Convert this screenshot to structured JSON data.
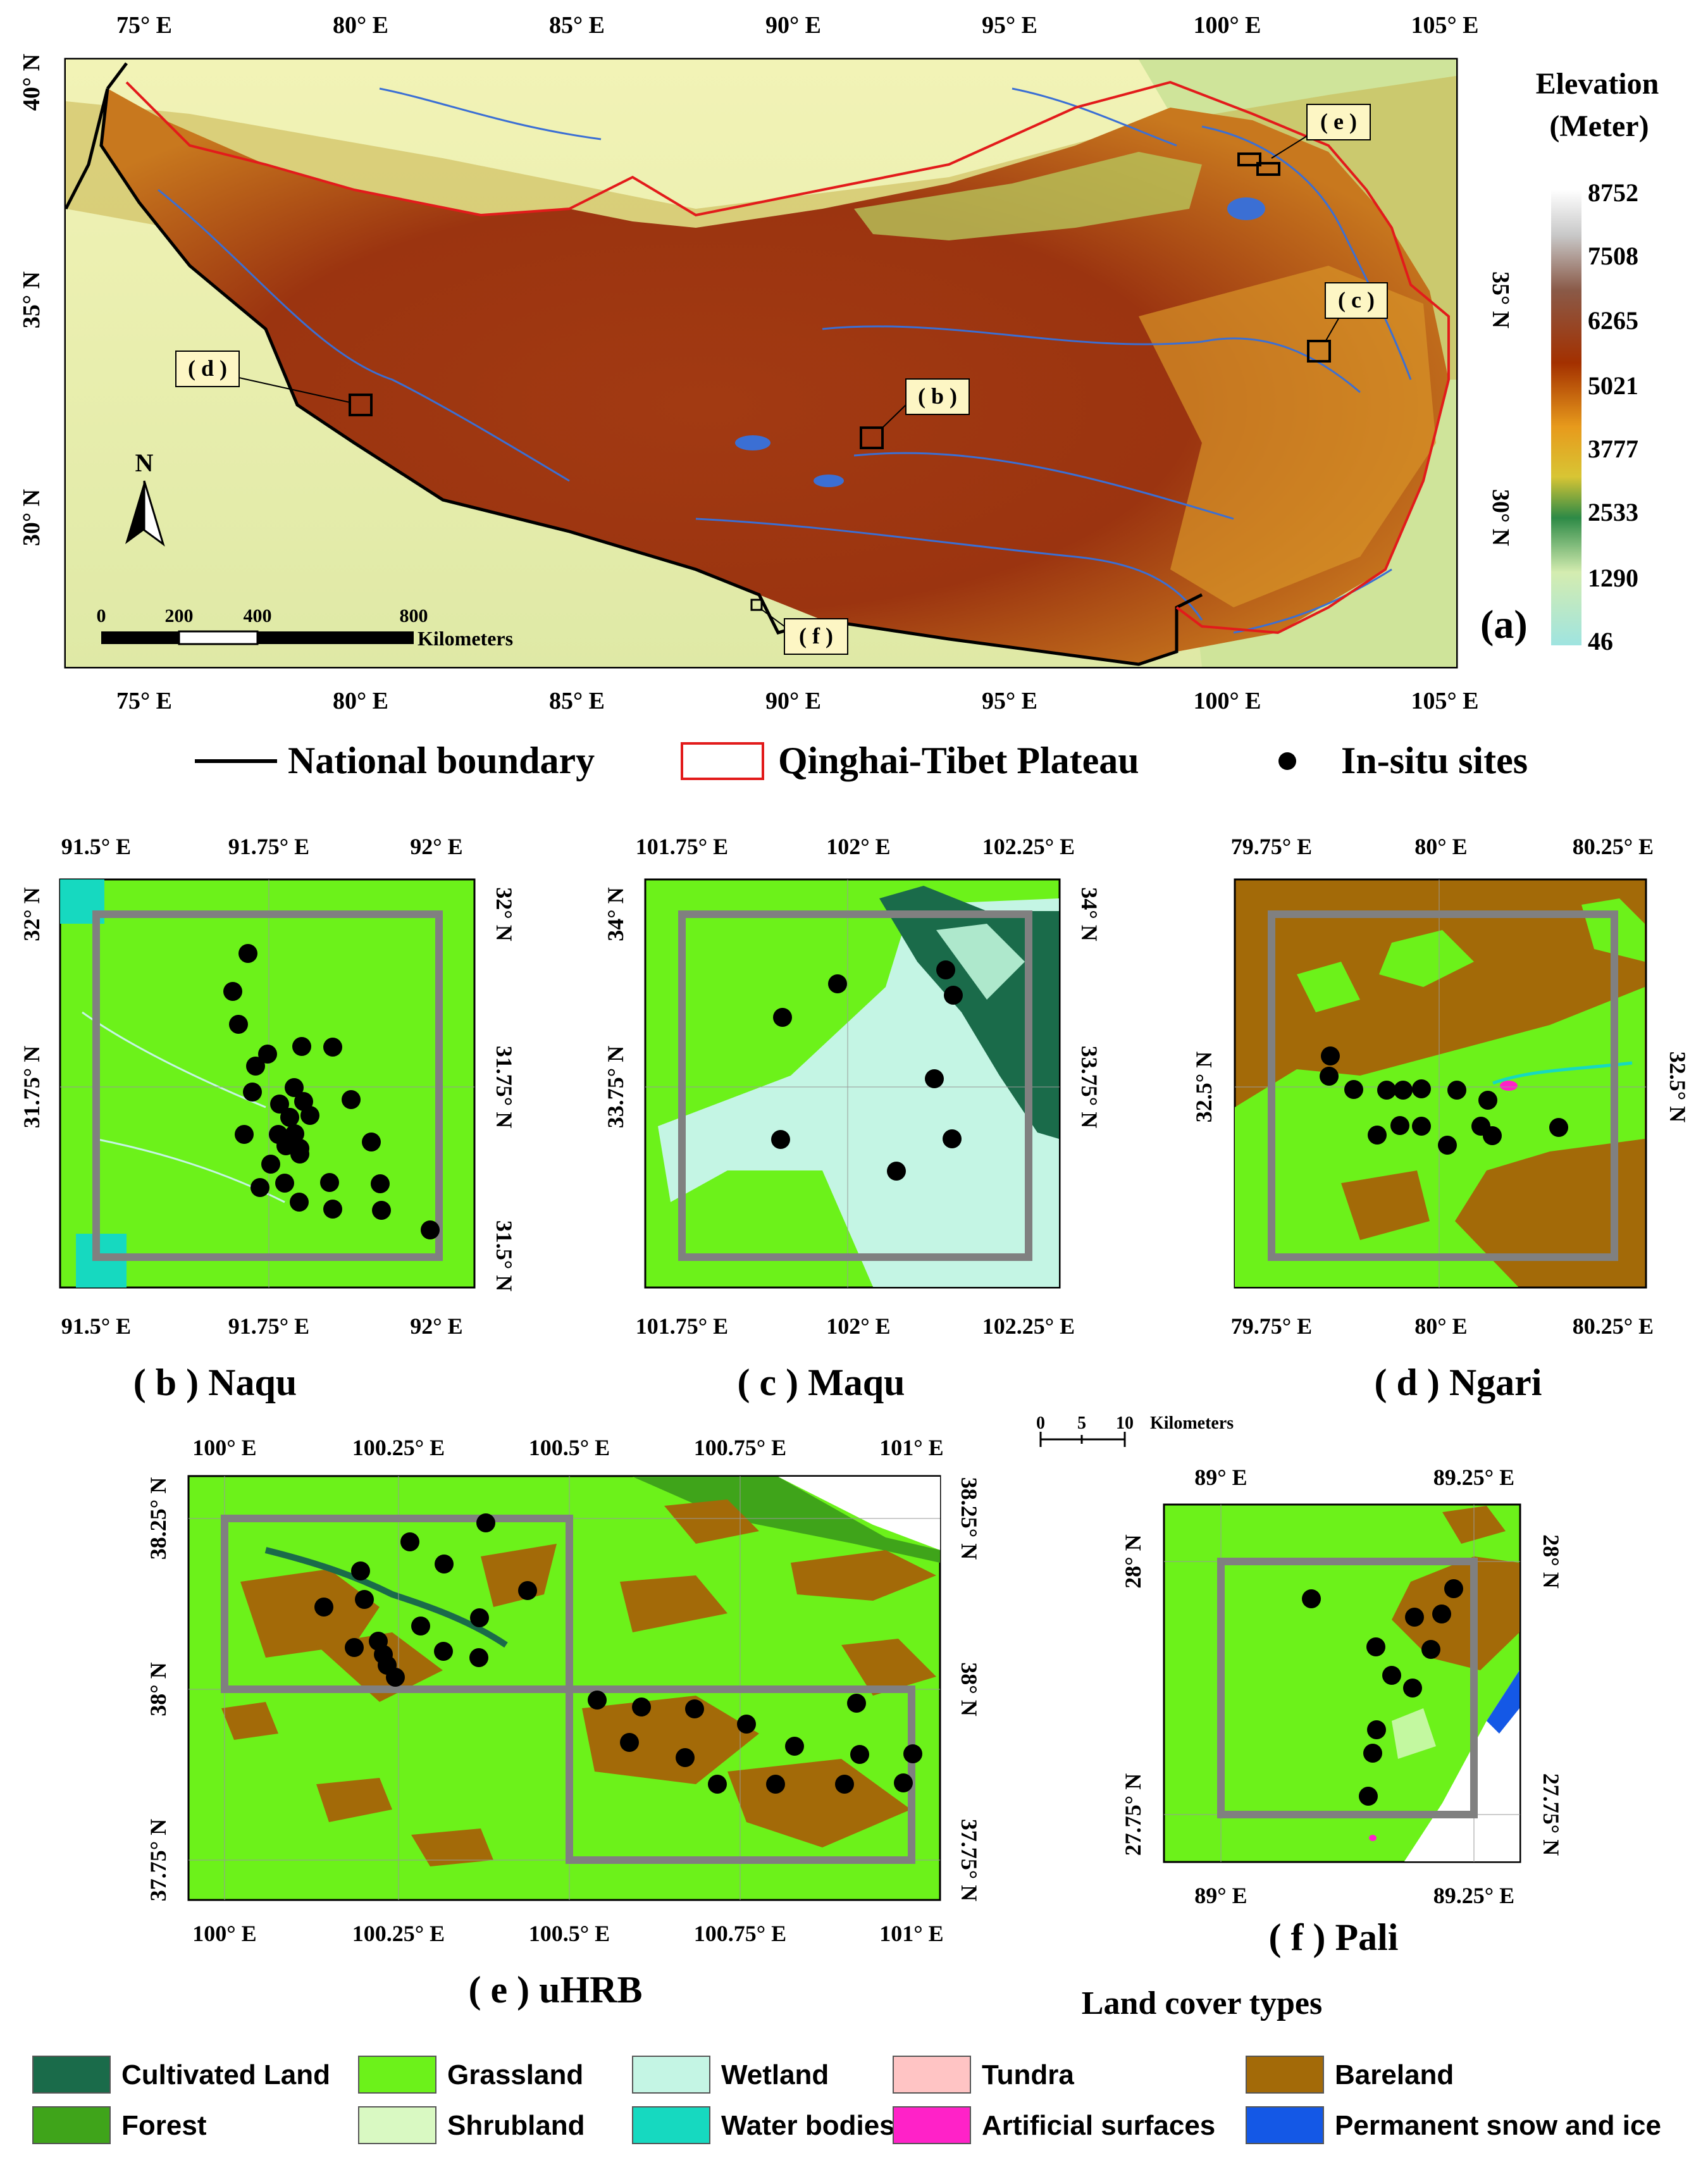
{
  "main_map": {
    "panel_label": "(a)",
    "top_ticks": [
      "75° E",
      "80° E",
      "85° E",
      "90° E",
      "95° E",
      "100° E",
      "105° E"
    ],
    "bottom_ticks": [
      "75° E",
      "80° E",
      "85° E",
      "90° E",
      "95° E",
      "100° E",
      "105° E"
    ],
    "left_ticks": [
      "40° N",
      "35° N",
      "30° N"
    ],
    "right_ticks": [
      "35° N",
      "30° N"
    ],
    "callouts": [
      "( e )",
      "( c )",
      "( d )",
      "( b )",
      "( f )"
    ],
    "north_label": "N",
    "scale_labels": [
      "0",
      "200",
      "400",
      "800"
    ],
    "scale_unit": "Kilometers"
  },
  "elevation_legend": {
    "title_line1": "Elevation",
    "title_line2": "(Meter)",
    "values": [
      "8752",
      "7508",
      "6265",
      "5021",
      "3777",
      "2533",
      "1290",
      "46"
    ]
  },
  "main_legend": {
    "items": [
      "National boundary",
      "Qinghai-Tibet Plateau",
      "In-situ sites"
    ]
  },
  "panels": {
    "naqu": {
      "caption": "( b ) Naqu",
      "top_ticks": [
        "91.5° E",
        "91.75° E",
        "92° E"
      ],
      "bottom_ticks": [
        "91.5° E",
        "91.75° E",
        "92° E"
      ],
      "left_ticks": [
        "32° N",
        "31.75° N"
      ],
      "right_ticks": [
        "32° N",
        "31.75° N",
        "31.5° N"
      ]
    },
    "maqu": {
      "caption": "( c ) Maqu",
      "top_ticks": [
        "101.75° E",
        "102° E",
        "102.25° E"
      ],
      "bottom_ticks": [
        "101.75° E",
        "102° E",
        "102.25° E"
      ],
      "left_ticks": [
        "34° N",
        "33.75° N"
      ],
      "right_ticks": [
        "34° N",
        "33.75° N"
      ]
    },
    "ngari": {
      "caption": "( d ) Ngari",
      "top_ticks": [
        "79.75° E",
        "80° E",
        "80.25° E"
      ],
      "bottom_ticks": [
        "79.75° E",
        "80° E",
        "80.25° E"
      ],
      "left_ticks": [
        "32.5° N"
      ],
      "right_ticks": [
        "32.5° N"
      ]
    },
    "uhrb": {
      "caption": "( e ) uHRB",
      "top_ticks": [
        "100° E",
        "100.25° E",
        "100.5° E",
        "100.75° E",
        "101° E"
      ],
      "bottom_ticks": [
        "100° E",
        "100.25° E",
        "100.5° E",
        "100.75° E",
        "101° E"
      ],
      "left_ticks": [
        "38.25° N",
        "38° N",
        "37.75° N"
      ],
      "right_ticks": [
        "38.25° N",
        "38° N",
        "37.75° N"
      ]
    },
    "pali": {
      "caption": "( f ) Pali",
      "top_ticks": [
        "89° E",
        "89.25° E"
      ],
      "bottom_ticks": [
        "89° E",
        "89.25° E"
      ],
      "left_ticks": [
        "28° N",
        "27.75° N"
      ],
      "right_ticks": [
        "28° N",
        "27.75° N"
      ]
    }
  },
  "small_scale": {
    "labels": [
      "0",
      "5",
      "10"
    ],
    "unit": "Kilometers"
  },
  "landcover_legend": {
    "title": "Land cover types",
    "items": [
      {
        "label": "Cultivated Land",
        "color": "#1a6b4a"
      },
      {
        "label": "Grassland",
        "color": "#6cf21a"
      },
      {
        "label": "Wetland",
        "color": "#c4f5e4"
      },
      {
        "label": "Tundra",
        "color": "#ffc4c4"
      },
      {
        "label": "Bareland",
        "color": "#a36a08"
      },
      {
        "label": "Forest",
        "color": "#3fa41a"
      },
      {
        "label": "Shrubland",
        "color": "#d9f9c2"
      },
      {
        "label": "Water bodies",
        "color": "#16d9c0"
      },
      {
        "label": "Artificial surfaces",
        "color": "#ff22c8"
      },
      {
        "label": "Permanent snow and ice",
        "color": "#1458e6"
      }
    ]
  },
  "colors": {
    "plateau_boundary": "#e21b1b",
    "site_marker": "#000000",
    "grid_box": "#808080",
    "callout_fill": "#fdf6c4"
  }
}
